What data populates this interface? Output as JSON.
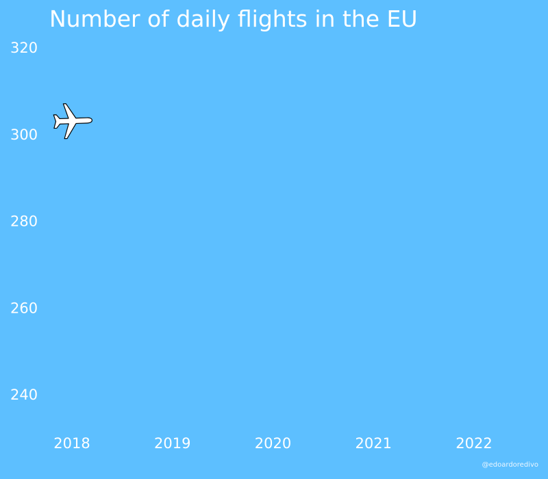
{
  "chart_data": {
    "type": "line",
    "title": "Number of daily flights in the EU",
    "xlabel": "",
    "ylabel": "",
    "x_ticks": [
      "2018",
      "2019",
      "2020",
      "2021",
      "2022"
    ],
    "y_ticks": [
      240,
      260,
      280,
      300,
      320
    ],
    "xlim": [
      2018,
      2022
    ],
    "ylim": [
      232,
      322
    ],
    "series": [
      {
        "x": [
          2018.0
        ],
        "y": [
          303
        ]
      }
    ],
    "marker_icon": "airplane-icon",
    "grid": false,
    "colors": {
      "background": "#5dbfff",
      "text": "#ffffff",
      "marker_fill": "#ffffff",
      "marker_outline": "#000000"
    }
  },
  "credit": "@edoardoredivo"
}
